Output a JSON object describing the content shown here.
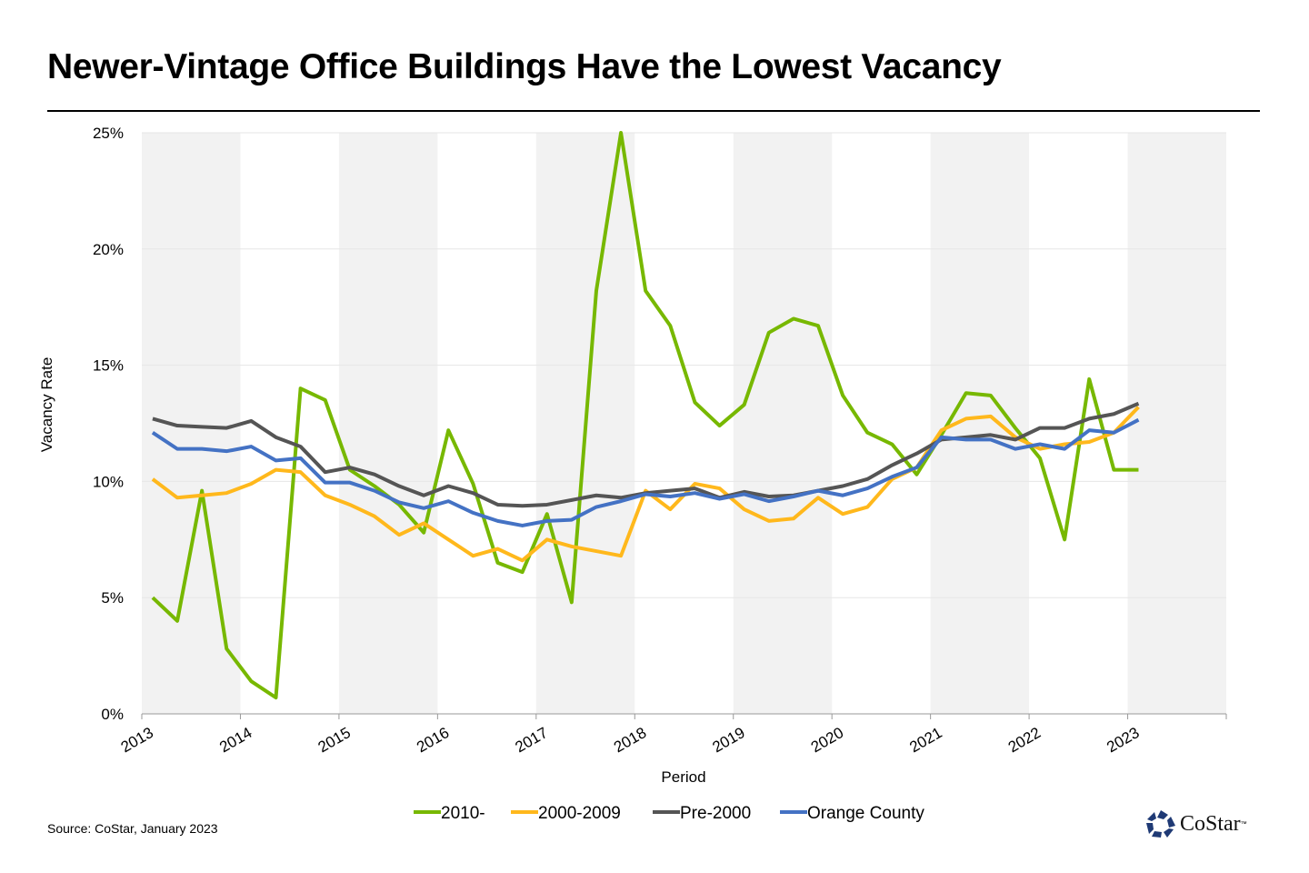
{
  "title": "Newer-Vintage Office Buildings Have the Lowest Vacancy",
  "source": "Source: CoStar, January 2023",
  "logo": {
    "text": "CoStar",
    "tm": "™"
  },
  "chart_data": {
    "type": "line",
    "title": "Newer-Vintage Office Buildings Have the Lowest Vacancy",
    "xlabel": "Period",
    "ylabel": "Vacancy Rate",
    "ylim": [
      0,
      25
    ],
    "yticks": [
      "0%",
      "5%",
      "10%",
      "15%",
      "20%",
      "25%"
    ],
    "xlim": [
      2013,
      2024
    ],
    "xticks": [
      "2013",
      "2014",
      "2015",
      "2016",
      "2017",
      "2018",
      "2019",
      "2020",
      "2021",
      "2022",
      "2023"
    ],
    "grid": "horizontal",
    "alternating_year_shading": true,
    "legend_position": "bottom",
    "x_start": "2013 Q1",
    "x_frequency": "quarterly",
    "series": [
      {
        "name": "2010-",
        "color": "#77b800",
        "values": [
          5.0,
          4.0,
          9.6,
          2.8,
          1.4,
          0.7,
          14.0,
          13.5,
          10.5,
          9.8,
          9.0,
          7.8,
          12.2,
          9.9,
          6.5,
          6.1,
          8.6,
          4.8,
          18.2,
          25.0,
          18.2,
          16.7,
          13.4,
          12.4,
          13.3,
          16.4,
          17.0,
          16.7,
          13.7,
          12.1,
          11.6,
          10.3,
          12.0,
          13.8,
          13.7,
          12.3,
          11.0,
          7.5,
          14.4,
          10.5,
          10.5
        ]
      },
      {
        "name": "2000-2009",
        "color": "#ffb81c",
        "values": [
          10.1,
          9.3,
          9.4,
          9.5,
          9.9,
          10.5,
          10.4,
          9.4,
          9.0,
          8.5,
          7.7,
          8.2,
          7.5,
          6.8,
          7.1,
          6.6,
          7.5,
          7.2,
          7.0,
          6.8,
          9.6,
          8.8,
          9.9,
          9.7,
          8.8,
          8.3,
          8.4,
          9.3,
          8.6,
          8.9,
          10.1,
          10.6,
          12.2,
          12.7,
          12.8,
          11.9,
          11.4,
          11.6,
          11.7,
          12.1,
          13.2
        ]
      },
      {
        "name": "Pre-2000",
        "color": "#555555",
        "values": [
          12.7,
          12.4,
          12.35,
          12.3,
          12.6,
          11.9,
          11.5,
          10.4,
          10.6,
          10.3,
          9.8,
          9.4,
          9.8,
          9.5,
          9.0,
          8.95,
          9.0,
          9.2,
          9.4,
          9.3,
          9.5,
          9.6,
          9.7,
          9.3,
          9.55,
          9.35,
          9.4,
          9.6,
          9.8,
          10.1,
          10.7,
          11.2,
          11.8,
          11.9,
          12.0,
          11.8,
          12.3,
          12.3,
          12.7,
          12.9,
          13.35
        ]
      },
      {
        "name": "Orange County",
        "color": "#4472c4",
        "values": [
          12.1,
          11.4,
          11.4,
          11.3,
          11.5,
          10.9,
          11.0,
          9.95,
          9.95,
          9.6,
          9.1,
          8.85,
          9.15,
          8.65,
          8.3,
          8.1,
          8.3,
          8.35,
          8.9,
          9.15,
          9.45,
          9.35,
          9.5,
          9.25,
          9.45,
          9.15,
          9.35,
          9.6,
          9.4,
          9.7,
          10.2,
          10.6,
          11.9,
          11.8,
          11.8,
          11.4,
          11.6,
          11.4,
          12.2,
          12.1,
          12.65
        ]
      }
    ]
  }
}
